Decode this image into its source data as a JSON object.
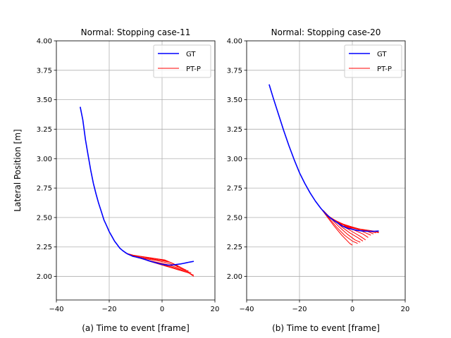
{
  "figure": {
    "shared_ylabel": "Lateral Position [m]"
  },
  "chart_data": [
    {
      "type": "line",
      "title": "Normal: Stopping case-11",
      "xlabel": "(a) Time to event [frame]",
      "ylabel": "Lateral Position [m]",
      "xlim": [
        -40,
        20
      ],
      "ylim": [
        1.8,
        4.0
      ],
      "xticks": [
        -40,
        -20,
        0,
        20
      ],
      "xtick_labels": [
        "−40",
        "−20",
        "0",
        "20"
      ],
      "yticks": [
        2.0,
        2.25,
        2.5,
        2.75,
        3.0,
        3.25,
        3.5,
        3.75,
        4.0
      ],
      "ytick_labels": [
        "2.00",
        "2.25",
        "2.50",
        "2.75",
        "3.00",
        "3.25",
        "3.50",
        "3.75",
        "4.00"
      ],
      "grid": true,
      "legend": {
        "position": "upper right",
        "entries": [
          {
            "label": "GT",
            "color": "#0000ff"
          },
          {
            "label": "PT-P",
            "color": "#ff0000"
          }
        ]
      },
      "series": [
        {
          "name": "GT",
          "color": "#0000ff",
          "width": 1.6,
          "points": [
            [
              -31,
              3.44
            ],
            [
              -30,
              3.33
            ],
            [
              -29,
              3.16
            ],
            [
              -28,
              3.03
            ],
            [
              -27,
              2.9
            ],
            [
              -26,
              2.79
            ],
            [
              -25,
              2.7
            ],
            [
              -24,
              2.62
            ],
            [
              -23,
              2.55
            ],
            [
              -22,
              2.48
            ],
            [
              -21,
              2.43
            ],
            [
              -20,
              2.38
            ],
            [
              -19,
              2.34
            ],
            [
              -18,
              2.3
            ],
            [
              -17,
              2.27
            ],
            [
              -16,
              2.24
            ],
            [
              -15,
              2.22
            ],
            [
              -14,
              2.205
            ],
            [
              -13,
              2.19
            ],
            [
              -12,
              2.18
            ],
            [
              -11,
              2.17
            ],
            [
              -10,
              2.165
            ],
            [
              -9,
              2.16
            ],
            [
              -8,
              2.155
            ],
            [
              -7,
              2.148
            ],
            [
              -6,
              2.14
            ],
            [
              -5,
              2.133
            ],
            [
              -4,
              2.126
            ],
            [
              -3,
              2.12
            ],
            [
              -2,
              2.114
            ],
            [
              -1,
              2.108
            ],
            [
              0,
              2.103
            ],
            [
              1,
              2.1
            ],
            [
              2,
              2.097
            ],
            [
              3,
              2.096
            ],
            [
              4,
              2.097
            ],
            [
              5,
              2.1
            ],
            [
              6,
              2.103
            ],
            [
              7,
              2.106
            ],
            [
              8,
              2.11
            ],
            [
              9,
              2.115
            ],
            [
              10,
              2.12
            ],
            [
              11,
              2.124
            ],
            [
              12,
              2.128
            ]
          ]
        },
        {
          "name": "PT-P",
          "color": "#ff0000",
          "width": 1,
          "trajectories": [
            [
              [
                -14,
                2.2
              ],
              [
                -11,
                2.18
              ],
              [
                -8,
                2.17
              ],
              [
                -5,
                2.16
              ],
              [
                -2,
                2.15
              ],
              [
                1,
                2.14
              ],
              [
                4,
                2.11
              ],
              [
                6,
                2.08
              ]
            ],
            [
              [
                -13,
                2.19
              ],
              [
                -10,
                2.175
              ],
              [
                -7,
                2.165
              ],
              [
                -4,
                2.155
              ],
              [
                -1,
                2.145
              ],
              [
                2,
                2.13
              ],
              [
                5,
                2.1
              ],
              [
                7,
                2.075
              ]
            ],
            [
              [
                -12,
                2.18
              ],
              [
                -9,
                2.165
              ],
              [
                -6,
                2.155
              ],
              [
                -3,
                2.145
              ],
              [
                0,
                2.135
              ],
              [
                3,
                2.12
              ],
              [
                6,
                2.09
              ],
              [
                8,
                2.065
              ]
            ],
            [
              [
                -11,
                2.17
              ],
              [
                -8,
                2.155
              ],
              [
                -5,
                2.145
              ],
              [
                -2,
                2.135
              ],
              [
                1,
                2.12
              ],
              [
                4,
                2.1
              ],
              [
                7,
                2.075
              ],
              [
                9,
                2.055
              ]
            ],
            [
              [
                -10,
                2.165
              ],
              [
                -7,
                2.145
              ],
              [
                -4,
                2.13
              ],
              [
                -1,
                2.115
              ],
              [
                2,
                2.1
              ],
              [
                5,
                2.08
              ],
              [
                8,
                2.06
              ],
              [
                10,
                2.045
              ]
            ],
            [
              [
                -9,
                2.16
              ],
              [
                -6,
                2.14
              ],
              [
                -3,
                2.12
              ],
              [
                0,
                2.1
              ],
              [
                3,
                2.085
              ],
              [
                6,
                2.065
              ],
              [
                9,
                2.045
              ],
              [
                11,
                2.03
              ]
            ],
            [
              [
                -8,
                2.155
              ],
              [
                -5,
                2.13
              ],
              [
                -2,
                2.11
              ],
              [
                1,
                2.09
              ],
              [
                4,
                2.07
              ],
              [
                7,
                2.05
              ],
              [
                10,
                2.03
              ],
              [
                12,
                2.01
              ]
            ],
            [
              [
                -7,
                2.148
              ],
              [
                -4,
                2.125
              ],
              [
                -1,
                2.105
              ],
              [
                2,
                2.085
              ],
              [
                5,
                2.065
              ],
              [
                8,
                2.045
              ],
              [
                10,
                2.03
              ],
              [
                12,
                2.0
              ]
            ]
          ]
        }
      ]
    },
    {
      "type": "line",
      "title": "Normal: Stopping case-20",
      "xlabel": "(b) Time to event [frame]",
      "ylabel": "",
      "xlim": [
        -40,
        20
      ],
      "ylim": [
        1.8,
        4.0
      ],
      "xticks": [
        -40,
        -20,
        0,
        20
      ],
      "xtick_labels": [
        "−40",
        "−20",
        "0",
        "20"
      ],
      "yticks": [
        2.0,
        2.25,
        2.5,
        2.75,
        3.0,
        3.25,
        3.5,
        3.75,
        4.0
      ],
      "ytick_labels": [
        "2.00",
        "2.25",
        "2.50",
        "2.75",
        "3.00",
        "3.25",
        "3.50",
        "3.75",
        "4.00"
      ],
      "grid": true,
      "legend": {
        "position": "upper right",
        "entries": [
          {
            "label": "GT",
            "color": "#0000ff"
          },
          {
            "label": "PT-P",
            "color": "#ff0000"
          }
        ]
      },
      "series": [
        {
          "name": "GT",
          "color": "#0000ff",
          "width": 1.6,
          "points": [
            [
              -31.5,
              3.63
            ],
            [
              -30,
              3.52
            ],
            [
              -28,
              3.38
            ],
            [
              -26,
              3.24
            ],
            [
              -24,
              3.11
            ],
            [
              -22,
              2.99
            ],
            [
              -20,
              2.88
            ],
            [
              -18,
              2.79
            ],
            [
              -16,
              2.71
            ],
            [
              -14,
              2.64
            ],
            [
              -12,
              2.58
            ],
            [
              -10,
              2.53
            ],
            [
              -8,
              2.49
            ],
            [
              -6,
              2.46
            ],
            [
              -4,
              2.43
            ],
            [
              -2,
              2.41
            ],
            [
              0,
              2.4
            ],
            [
              2,
              2.39
            ],
            [
              4,
              2.385
            ],
            [
              6,
              2.383
            ],
            [
              8,
              2.383
            ],
            [
              10,
              2.385
            ]
          ]
        },
        {
          "name": "PT-P",
          "color": "#ff0000",
          "width": 1,
          "trajectories": [
            [
              [
                -13,
                2.61
              ],
              [
                -10,
                2.52
              ],
              [
                -7,
                2.43
              ],
              [
                -4,
                2.35
              ],
              [
                -1,
                2.28
              ],
              [
                0,
                2.265
              ]
            ],
            [
              [
                -12,
                2.58
              ],
              [
                -9,
                2.5
              ],
              [
                -6,
                2.42
              ],
              [
                -3,
                2.35
              ],
              [
                0,
                2.3
              ],
              [
                2,
                2.28
              ]
            ],
            [
              [
                -11,
                2.56
              ],
              [
                -8,
                2.49
              ],
              [
                -5,
                2.42
              ],
              [
                -2,
                2.36
              ],
              [
                1,
                2.31
              ],
              [
                3,
                2.29
              ]
            ],
            [
              [
                -10,
                2.53
              ],
              [
                -7,
                2.48
              ],
              [
                -4,
                2.42
              ],
              [
                -1,
                2.37
              ],
              [
                2,
                2.33
              ],
              [
                4,
                2.3
              ]
            ],
            [
              [
                -9,
                2.51
              ],
              [
                -6,
                2.47
              ],
              [
                -3,
                2.42
              ],
              [
                0,
                2.38
              ],
              [
                3,
                2.34
              ],
              [
                5,
                2.31
              ]
            ],
            [
              [
                -8,
                2.49
              ],
              [
                -5,
                2.46
              ],
              [
                -2,
                2.42
              ],
              [
                1,
                2.39
              ],
              [
                4,
                2.36
              ],
              [
                6,
                2.33
              ]
            ],
            [
              [
                -7,
                2.48
              ],
              [
                -4,
                2.45
              ],
              [
                -1,
                2.42
              ],
              [
                2,
                2.4
              ],
              [
                5,
                2.37
              ],
              [
                7,
                2.35
              ]
            ],
            [
              [
                -6,
                2.46
              ],
              [
                -3,
                2.44
              ],
              [
                0,
                2.42
              ],
              [
                3,
                2.4
              ],
              [
                6,
                2.38
              ],
              [
                8,
                2.36
              ]
            ],
            [
              [
                -5,
                2.45
              ],
              [
                -2,
                2.43
              ],
              [
                1,
                2.41
              ],
              [
                4,
                2.395
              ],
              [
                7,
                2.38
              ],
              [
                9,
                2.37
              ]
            ],
            [
              [
                -4,
                2.43
              ],
              [
                -1,
                2.42
              ],
              [
                2,
                2.405
              ],
              [
                5,
                2.395
              ],
              [
                8,
                2.385
              ],
              [
                10,
                2.37
              ]
            ],
            [
              [
                -3,
                2.42
              ],
              [
                0,
                2.41
              ],
              [
                3,
                2.4
              ],
              [
                6,
                2.39
              ],
              [
                9,
                2.38
              ],
              [
                10,
                2.375
              ]
            ]
          ]
        }
      ]
    }
  ]
}
